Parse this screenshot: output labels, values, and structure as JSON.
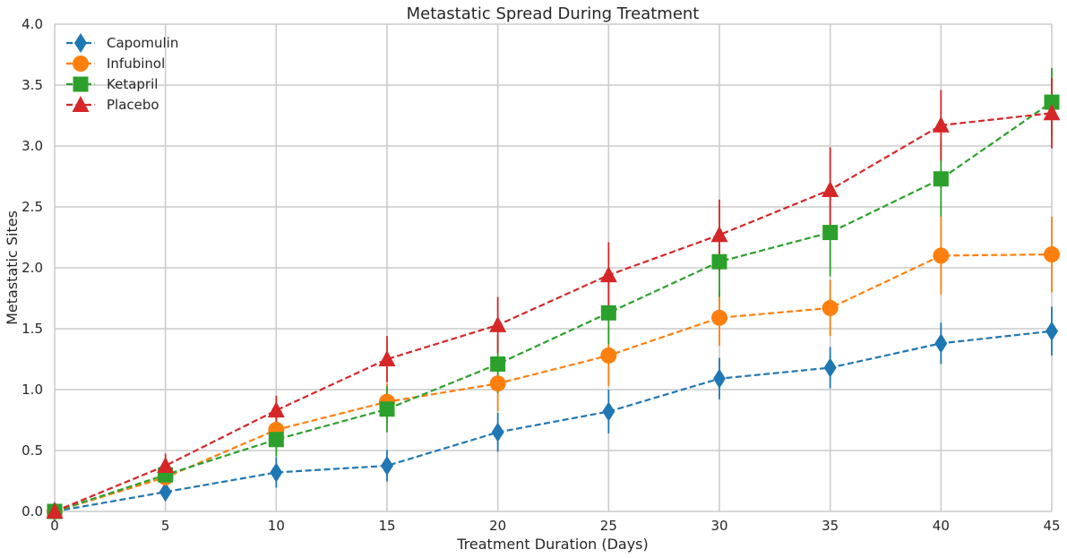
{
  "chart_data": {
    "type": "line",
    "title": "Metastatic Spread During Treatment",
    "xlabel": "Treatment Duration (Days)",
    "ylabel": "Metastatic Sites",
    "xlim": [
      0,
      45
    ],
    "ylim": [
      0,
      4.0
    ],
    "grid": true,
    "legend_position": "top-left",
    "x": [
      0,
      5,
      10,
      15,
      20,
      25,
      30,
      35,
      40,
      45
    ],
    "x_tick_labels": [
      "0",
      "5",
      "10",
      "15",
      "20",
      "25",
      "30",
      "35",
      "40",
      "45"
    ],
    "y_ticks": [
      0,
      0.5,
      1.0,
      1.5,
      2.0,
      2.5,
      3.0,
      3.5,
      4.0
    ],
    "y_tick_labels": [
      "0.0",
      "0.5",
      "1.0",
      "1.5",
      "2.0",
      "2.5",
      "3.0",
      "3.5",
      "4.0"
    ],
    "series": [
      {
        "name": "Capomulin",
        "color": "#1f77b4",
        "marker": "thin-diamond",
        "values": [
          0.0,
          0.16,
          0.32,
          0.375,
          0.65,
          0.82,
          1.09,
          1.18,
          1.38,
          1.48
        ],
        "errors": [
          0.0,
          0.075,
          0.125,
          0.13,
          0.16,
          0.18,
          0.17,
          0.17,
          0.17,
          0.2
        ]
      },
      {
        "name": "Infubinol",
        "color": "#ff7f0e",
        "marker": "circle",
        "values": [
          0.0,
          0.28,
          0.67,
          0.9,
          1.05,
          1.28,
          1.59,
          1.67,
          2.1,
          2.11
        ],
        "errors": [
          0.0,
          0.09,
          0.14,
          0.15,
          0.23,
          0.25,
          0.23,
          0.23,
          0.32,
          0.31
        ]
      },
      {
        "name": "Ketapril",
        "color": "#2ca02c",
        "marker": "square",
        "values": [
          0.0,
          0.3,
          0.59,
          0.84,
          1.21,
          1.63,
          2.05,
          2.29,
          2.73,
          3.36
        ],
        "errors": [
          0.0,
          0.1,
          0.14,
          0.19,
          0.24,
          0.26,
          0.29,
          0.36,
          0.31,
          0.28
        ]
      },
      {
        "name": "Placebo",
        "color": "#d62728",
        "marker": "triangle",
        "values": [
          0.0,
          0.375,
          0.83,
          1.25,
          1.53,
          1.94,
          2.27,
          2.64,
          3.17,
          3.27
        ],
        "errors": [
          0.0,
          0.1,
          0.12,
          0.19,
          0.23,
          0.27,
          0.29,
          0.35,
          0.29,
          0.29
        ]
      }
    ]
  }
}
